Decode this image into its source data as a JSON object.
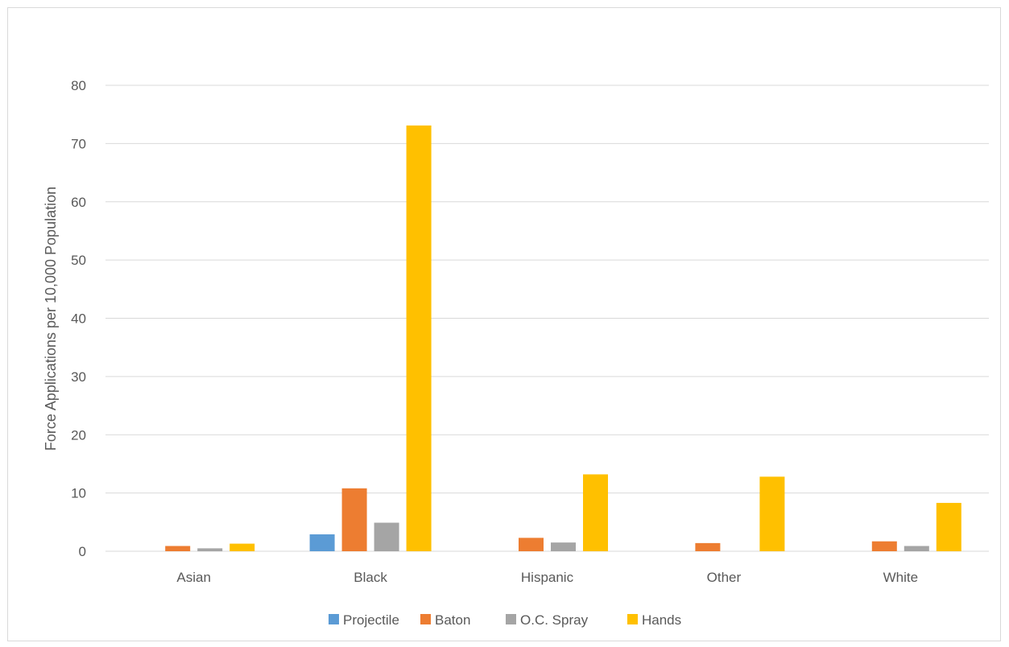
{
  "chart_data": {
    "type": "bar",
    "title": "",
    "xlabel": "",
    "ylabel": "Force Applications per 10,000 Population",
    "ylim": [
      0,
      80
    ],
    "yticks": [
      0,
      10,
      20,
      30,
      40,
      50,
      60,
      70,
      80
    ],
    "grid": "horizontal",
    "legend_position": "bottom",
    "categories": [
      "Asian",
      "Black",
      "Hispanic",
      "Other",
      "White"
    ],
    "series": [
      {
        "name": "Projectile",
        "color": "#5b9bd5",
        "values": [
          0,
          2.9,
          0,
          0,
          0
        ]
      },
      {
        "name": "Baton",
        "color": "#ed7d31",
        "values": [
          0.9,
          10.8,
          2.3,
          1.4,
          1.7
        ]
      },
      {
        "name": "O.C. Spray",
        "color": "#a5a5a5",
        "values": [
          0.5,
          4.9,
          1.5,
          0,
          0.9
        ]
      },
      {
        "name": "Hands",
        "color": "#ffc000",
        "values": [
          1.3,
          73.1,
          13.2,
          12.8,
          8.3
        ]
      }
    ]
  }
}
